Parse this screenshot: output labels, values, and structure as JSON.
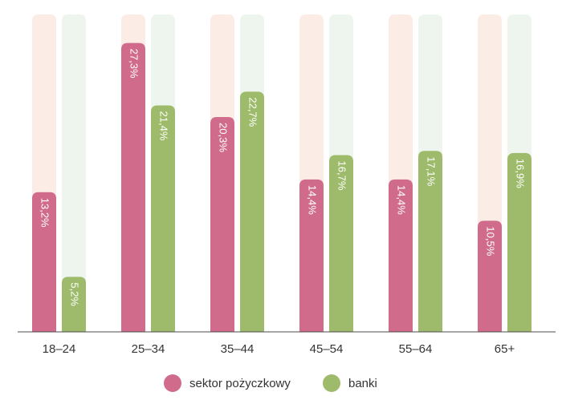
{
  "chart_data": {
    "type": "bar",
    "categories": [
      "18–24",
      "25–34",
      "35–44",
      "45–54",
      "55–64",
      "65+"
    ],
    "series": [
      {
        "name": "sektor pożyczkowy",
        "values": [
          13.2,
          27.3,
          20.3,
          14.4,
          14.4,
          10.5
        ],
        "labels": [
          "13,2%",
          "27,3%",
          "20,3%",
          "14,4%",
          "14,4%",
          "10,5%"
        ],
        "color": "#d06b8c",
        "track_color": "#fcece6"
      },
      {
        "name": "banki",
        "values": [
          5.2,
          21.4,
          22.7,
          16.7,
          17.1,
          16.9
        ],
        "labels": [
          "5,2%",
          "21,4%",
          "22,7%",
          "16,7%",
          "17,1%",
          "16,9%"
        ],
        "color": "#9dbb6b",
        "track_color": "#eef5ee"
      }
    ],
    "ylim": [
      0,
      30
    ],
    "grid": false,
    "legend": "bottom-center",
    "label_orientation": "rotated"
  }
}
